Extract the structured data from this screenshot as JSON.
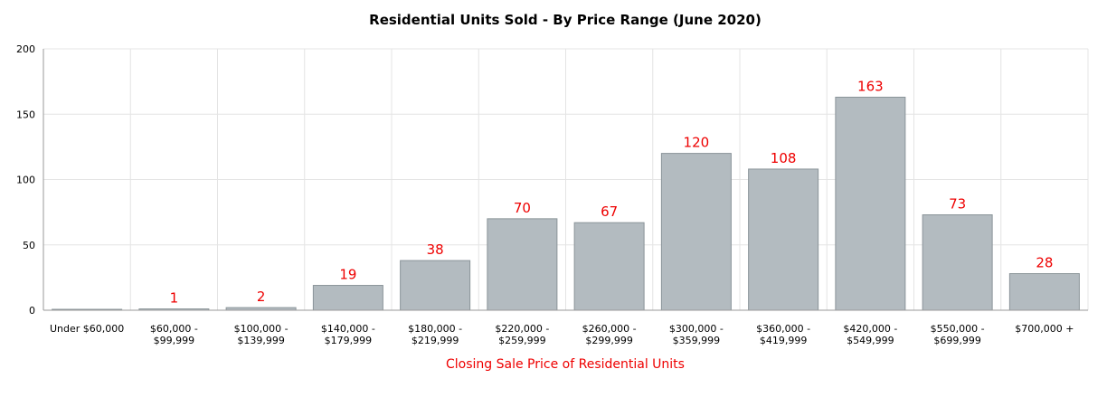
{
  "chart_data": {
    "type": "bar",
    "title": "Residential Units Sold - By Price Range (June 2020)",
    "xlabel": "Closing Sale Price of Residential Units",
    "ylabel": "",
    "ylim": [
      0,
      200
    ],
    "yticks": [
      0,
      50,
      100,
      150,
      200
    ],
    "grid": true,
    "categories": [
      [
        "Under $60,000"
      ],
      [
        "$60,000 -",
        "$99,999"
      ],
      [
        "$100,000 -",
        "$139,999"
      ],
      [
        "$140,000 -",
        "$179,999"
      ],
      [
        "$180,000 -",
        "$219,999"
      ],
      [
        "$220,000 -",
        "$259,999"
      ],
      [
        "$260,000 -",
        "$299,999"
      ],
      [
        "$300,000 -",
        "$359,999"
      ],
      [
        "$360,000 -",
        "$419,999"
      ],
      [
        "$420,000 -",
        "$549,999"
      ],
      [
        "$550,000 -",
        "$699,999"
      ],
      [
        "$700,000 +"
      ]
    ],
    "values": [
      0,
      1,
      2,
      19,
      38,
      70,
      67,
      120,
      108,
      163,
      73,
      28
    ],
    "data_labels": [
      "",
      "1",
      "2",
      "19",
      "38",
      "70",
      "67",
      "120",
      "108",
      "163",
      "73",
      "28"
    ],
    "colors": {
      "bar_fill": "#b3bbc0",
      "bar_stroke": "#8a9499",
      "data_label": "#ee0000",
      "xlabel": "#ee0000"
    }
  }
}
